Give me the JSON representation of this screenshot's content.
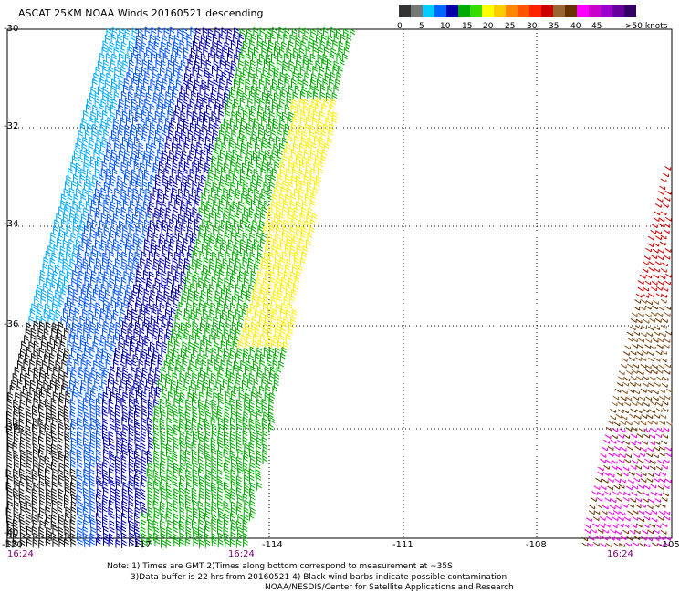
{
  "title": "ASCAT 25KM NOAA Winds 20160521 descending",
  "colorbar": {
    "labels": [
      "0",
      "5",
      "10",
      "15",
      "20",
      "25",
      "30",
      "35",
      "40",
      "45",
      ">50 knots"
    ],
    "colors": [
      "#333333",
      "#777777",
      "#00ccff",
      "#0066ff",
      "#0000aa",
      "#00aa00",
      "#33dd00",
      "#ffff00",
      "#ffcc00",
      "#ff8800",
      "#ff5500",
      "#ff2200",
      "#cc0000",
      "#996633",
      "#663300",
      "#ff00ff",
      "#cc00cc",
      "#9900cc",
      "#660099",
      "#330066"
    ]
  },
  "axes": {
    "lat_labels": [
      "-30",
      "-32",
      "-34",
      "-36",
      "-38",
      "-40"
    ],
    "lon_labels": [
      "-120",
      "-117",
      "-114",
      "-111",
      "-108",
      "-105"
    ],
    "time_labels": [
      "16:24",
      "16:24",
      "16:24"
    ]
  },
  "notes": [
    "Note: 1) Times are GMT 2)Times along bottom correspond to measurement at ~35S",
    "3)Data buffer is 22 hrs from 20160521 4) Black wind barbs indicate possible contamination",
    "NOAA/NESDIS/Center for Satellite Applications and Research"
  ]
}
